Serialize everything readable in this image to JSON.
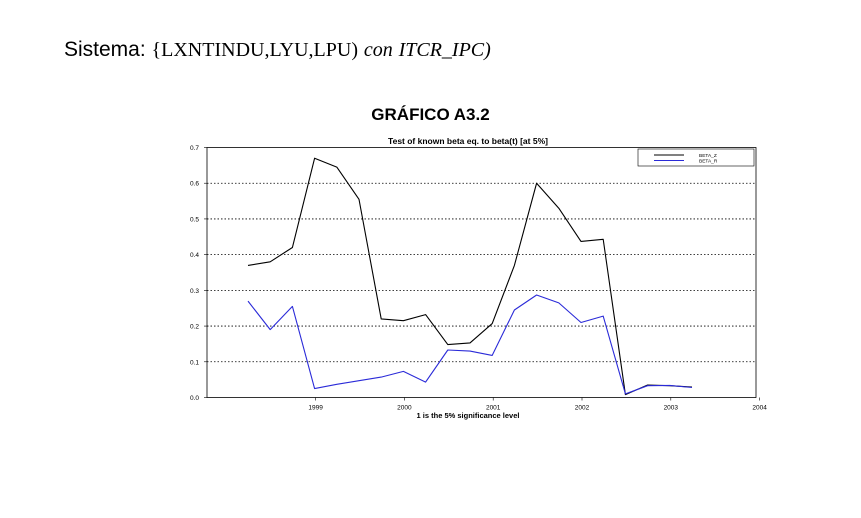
{
  "heading": {
    "label": "Sistema:",
    "system": "{LXNTINDU,LYU,LPU)",
    "connector": "con",
    "series_name": "ITCR_IPC)"
  },
  "figure_title": "GRÁFICO A3.2",
  "chart_data": {
    "type": "line",
    "title": "Test of known beta eq. to beta(t) [at 5%]",
    "xlabel": "1 is the 5% significance level",
    "ylabel": "",
    "ylim": [
      0,
      0.7
    ],
    "yticks": [
      "0.0",
      "0.1",
      "0.2",
      "0.3",
      "0.4",
      "0.5",
      "0.6",
      "0.7"
    ],
    "xticks": [
      "1999",
      "2000",
      "2001",
      "2002",
      "2003",
      "2004"
    ],
    "x": [
      "1998Q4",
      "1999Q1",
      "1999Q2",
      "1999Q3",
      "1999Q4",
      "2000Q1",
      "2000Q2",
      "2000Q3",
      "2000Q4",
      "2001Q1",
      "2001Q2",
      "2001Q3",
      "2001Q4",
      "2002Q1",
      "2002Q2",
      "2002Q3",
      "2002Q4",
      "2003Q1",
      "2003Q2",
      "2003Q3",
      "2003Q4"
    ],
    "grid": "horizontal dotted",
    "legend_position": "top-right",
    "series": [
      {
        "name": "BETA_Z",
        "color": "#000000",
        "values": [
          0.37,
          0.38,
          0.42,
          0.67,
          0.645,
          0.555,
          0.22,
          0.215,
          0.232,
          0.148,
          0.153,
          0.207,
          0.37,
          0.6,
          0.53,
          0.437,
          0.443,
          0.008,
          0.035,
          0.033,
          0.029
        ]
      },
      {
        "name": "BETA_R",
        "color": "#2a2ad8",
        "values": [
          0.27,
          0.19,
          0.255,
          0.025,
          0.037,
          0.047,
          0.057,
          0.073,
          0.043,
          0.133,
          0.13,
          0.118,
          0.245,
          0.287,
          0.265,
          0.21,
          0.228,
          0.01,
          0.033,
          0.034,
          0.028
        ]
      }
    ]
  }
}
